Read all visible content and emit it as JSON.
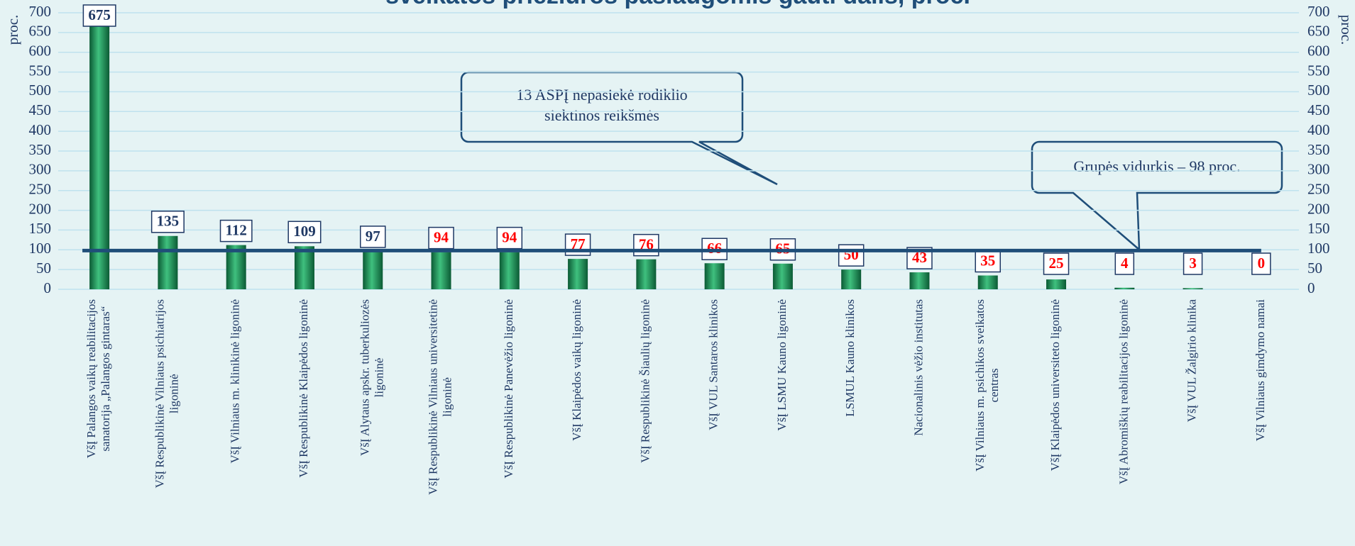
{
  "chart_data": {
    "type": "bar",
    "title": "sveikatos priežiūros paslaugomis gauti dalis, proc.",
    "y_label": "proc.",
    "categories": [
      "VšĮ Palangos vaikų reabilitacijos sanatorija „Palangos gintaras“",
      "VšĮ Respublikinė Vilniaus psichiatrijos ligoninė",
      "VšĮ Vilniaus m. klinikinė ligoninė",
      "VšĮ Respublikinė Klaipėdos ligoninė",
      "VšĮ Alytaus apskr. tuberkuliozės ligoninė",
      "VšĮ Respublikinė Vilniaus universitetinė ligoninė",
      "VšĮ Respublikinė Panevėžio ligoninė",
      "VšĮ Klaipėdos vaikų ligoninė",
      "VšĮ Respublikinė Šiaulių ligoninė",
      "VšĮ VUL Santaros klinikos",
      "VšĮ LSMU Kauno ligoninė",
      "LSMUL Kauno klinikos",
      "Nacionalinis vėžio institutas",
      "VšĮ Vilniaus m. psichikos sveikatos centras",
      "VšĮ Klaipėdos universiteto ligoninė",
      "VšĮ Abromiškių reabilitacijos ligoninė",
      "VšĮ VUL Žalgirio klinika",
      "VšĮ Vilniaus gimdymo namai"
    ],
    "values": [
      675,
      135,
      112,
      109,
      97,
      94,
      94,
      77,
      76,
      66,
      65,
      50,
      43,
      35,
      25,
      4,
      3,
      0
    ],
    "value_label_colors": [
      "#1f3864",
      "#1f3864",
      "#1f3864",
      "#1f3864",
      "#1f3864",
      "#ff0000",
      "#ff0000",
      "#ff0000",
      "#ff0000",
      "#ff0000",
      "#ff0000",
      "#ff0000",
      "#ff0000",
      "#ff0000",
      "#ff0000",
      "#ff0000",
      "#ff0000",
      "#ff0000"
    ],
    "color": "#1e8c55",
    "average": 98,
    "average_color": "#1f4e79",
    "annotations": [
      "13 ASPĮ nepasiekė rodiklio siektinos reikšmės",
      "Grupės vidurkis – 98 proc."
    ],
    "ylim": [
      0,
      700
    ],
    "yticks": [
      0,
      50,
      100,
      150,
      200,
      250,
      300,
      350,
      400,
      450,
      500,
      550,
      600,
      650,
      700
    ],
    "grid": true
  }
}
